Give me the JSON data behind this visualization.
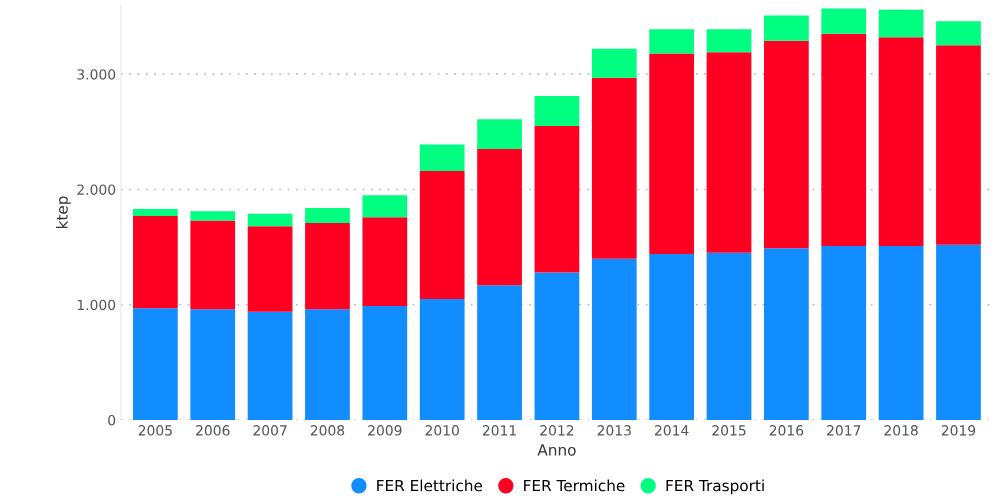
{
  "chart_data": {
    "type": "bar",
    "stacked": true,
    "xlabel": "Anno",
    "ylabel": "ktep",
    "categories": [
      "2005",
      "2006",
      "2007",
      "2008",
      "2009",
      "2010",
      "2011",
      "2012",
      "2013",
      "2014",
      "2015",
      "2016",
      "2017",
      "2018",
      "2019"
    ],
    "series": [
      {
        "name": "FER Elettriche",
        "color": "#118dff",
        "values": [
          970,
          960,
          940,
          960,
          990,
          1050,
          1170,
          1280,
          1400,
          1440,
          1450,
          1490,
          1510,
          1510,
          1520
        ]
      },
      {
        "name": "FER Termiche",
        "color": "#ff0022",
        "values": [
          800,
          770,
          740,
          750,
          770,
          1110,
          1180,
          1270,
          1570,
          1740,
          1740,
          1800,
          1840,
          1810,
          1730
        ]
      },
      {
        "name": "FER Trasporti",
        "color": "#00ff80",
        "values": [
          60,
          80,
          110,
          130,
          190,
          230,
          260,
          260,
          250,
          210,
          200,
          220,
          220,
          240,
          210
        ]
      }
    ],
    "ylim": [
      0,
      3600
    ],
    "yticks": [
      {
        "value": 0,
        "label": "0"
      },
      {
        "value": 1000,
        "label": "1.000"
      },
      {
        "value": 2000,
        "label": "2.000"
      },
      {
        "value": 3000,
        "label": "3.000"
      }
    ],
    "grid": "y",
    "legend": "bottom"
  }
}
